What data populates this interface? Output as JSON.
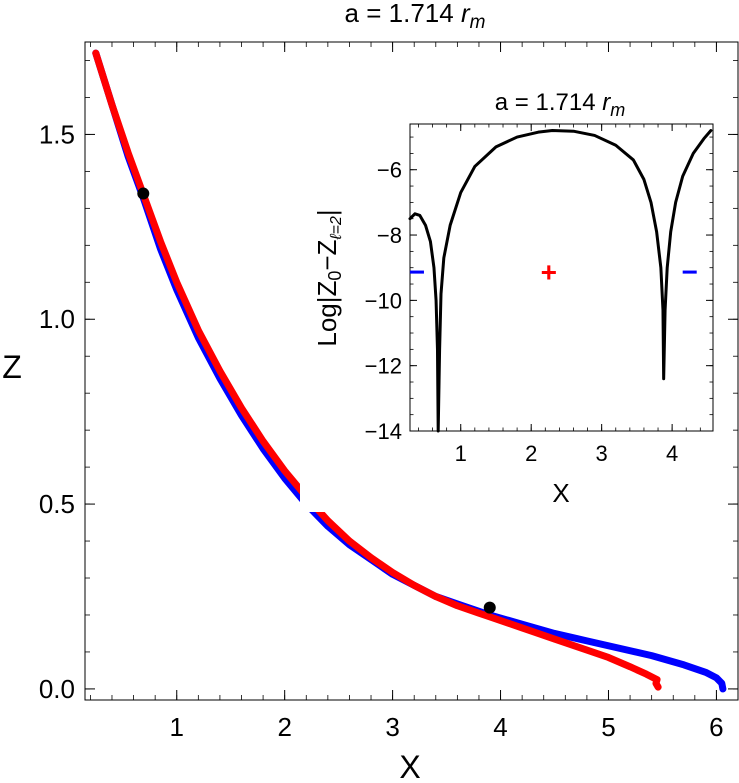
{
  "chart_data": [
    {
      "type": "line",
      "title": {
        "main": "a = 1.714 ",
        "italic": "r",
        "sub": "m"
      },
      "xlabel": "X",
      "ylabel": "Z",
      "xlim": [
        0.15,
        6.2
      ],
      "ylim": [
        -0.03,
        1.75
      ],
      "xticks": [
        1,
        2,
        3,
        4,
        5,
        6
      ],
      "yticks": [
        0.0,
        0.5,
        1.0,
        1.5
      ],
      "ytick_labels": [
        "0.0",
        "0.5",
        "1.0",
        "1.5"
      ],
      "grid": false,
      "series": [
        {
          "color": "#0000ff",
          "points": [
            [
              0.25,
              1.72
            ],
            [
              0.4,
              1.58
            ],
            [
              0.55,
              1.44
            ],
            [
              0.7,
              1.32
            ],
            [
              0.85,
              1.19
            ],
            [
              1.0,
              1.08
            ],
            [
              1.2,
              0.95
            ],
            [
              1.4,
              0.84
            ],
            [
              1.6,
              0.74
            ],
            [
              1.8,
              0.65
            ],
            [
              2.0,
              0.57
            ],
            [
              2.2,
              0.5
            ],
            [
              2.4,
              0.44
            ],
            [
              2.6,
              0.39
            ],
            [
              2.8,
              0.35
            ],
            [
              3.0,
              0.31
            ],
            [
              3.2,
              0.28
            ],
            [
              3.4,
              0.25
            ],
            [
              3.6,
              0.23
            ],
            [
              3.8,
              0.21
            ],
            [
              3.9,
              0.2
            ],
            [
              4.2,
              0.175
            ],
            [
              4.5,
              0.15
            ],
            [
              4.8,
              0.13
            ],
            [
              5.1,
              0.11
            ],
            [
              5.4,
              0.09
            ],
            [
              5.7,
              0.065
            ],
            [
              5.9,
              0.045
            ],
            [
              6.0,
              0.03
            ],
            [
              6.05,
              0.015
            ],
            [
              6.06,
              0.0
            ]
          ]
        },
        {
          "color": "#ff0000",
          "points": [
            [
              0.25,
              1.72
            ],
            [
              0.4,
              1.58
            ],
            [
              0.55,
              1.45
            ],
            [
              0.7,
              1.33
            ],
            [
              0.85,
              1.21
            ],
            [
              1.0,
              1.1
            ],
            [
              1.2,
              0.97
            ],
            [
              1.4,
              0.86
            ],
            [
              1.6,
              0.76
            ],
            [
              1.8,
              0.67
            ],
            [
              2.0,
              0.59
            ],
            [
              2.2,
              0.52
            ],
            [
              2.4,
              0.455
            ],
            [
              2.6,
              0.4
            ],
            [
              2.8,
              0.355
            ],
            [
              3.0,
              0.315
            ],
            [
              3.2,
              0.28
            ],
            [
              3.4,
              0.25
            ],
            [
              3.6,
              0.225
            ],
            [
              3.8,
              0.205
            ],
            [
              3.9,
              0.195
            ],
            [
              4.2,
              0.165
            ],
            [
              4.5,
              0.135
            ],
            [
              4.8,
              0.105
            ],
            [
              5.0,
              0.085
            ],
            [
              5.2,
              0.06
            ],
            [
              5.35,
              0.04
            ],
            [
              5.45,
              0.025
            ],
            [
              5.44,
              0.015
            ],
            [
              5.46,
              0.005
            ]
          ]
        }
      ],
      "markers": [
        {
          "x": 0.69,
          "y": 1.34,
          "color": "#000000"
        },
        {
          "x": 3.9,
          "y": 0.22,
          "color": "#000000"
        }
      ]
    },
    {
      "type": "line",
      "title": {
        "main": "a = 1.714 ",
        "italic": "r",
        "sub": "m"
      },
      "xlabel": "X",
      "ylabel": {
        "prefix": "Log|Z",
        "sub1": "0",
        "mid": "−Z",
        "sub2": "ℓ=2",
        "suffix": "|"
      },
      "xlim": [
        0.28,
        4.58
      ],
      "ylim": [
        -14,
        -4.6
      ],
      "xticks": [
        1,
        2,
        3,
        4
      ],
      "yticks": [
        -14,
        -12,
        -10,
        -8,
        -6
      ],
      "ytick_labels": [
        "−14",
        "−12",
        "−10",
        "−8",
        "−6"
      ],
      "grid": false,
      "series": [
        {
          "color": "#000000",
          "points": [
            [
              0.28,
              -7.5
            ],
            [
              0.35,
              -7.35
            ],
            [
              0.42,
              -7.4
            ],
            [
              0.5,
              -7.7
            ],
            [
              0.57,
              -8.2
            ],
            [
              0.62,
              -9.0
            ],
            [
              0.65,
              -10.0
            ],
            [
              0.67,
              -11.5
            ],
            [
              0.68,
              -14.0
            ],
            [
              0.7,
              -11.5
            ],
            [
              0.72,
              -9.8
            ],
            [
              0.76,
              -8.7
            ],
            [
              0.85,
              -7.7
            ],
            [
              1.0,
              -6.7
            ],
            [
              1.2,
              -5.9
            ],
            [
              1.5,
              -5.3
            ],
            [
              1.8,
              -5.0
            ],
            [
              2.1,
              -4.85
            ],
            [
              2.3,
              -4.8
            ],
            [
              2.6,
              -4.82
            ],
            [
              2.9,
              -4.95
            ],
            [
              3.2,
              -5.25
            ],
            [
              3.45,
              -5.7
            ],
            [
              3.6,
              -6.3
            ],
            [
              3.7,
              -7.0
            ],
            [
              3.78,
              -7.9
            ],
            [
              3.84,
              -9.0
            ],
            [
              3.87,
              -10.3
            ],
            [
              3.88,
              -12.4
            ],
            [
              3.9,
              -10.3
            ],
            [
              3.93,
              -9.0
            ],
            [
              3.98,
              -7.9
            ],
            [
              4.05,
              -7.0
            ],
            [
              4.15,
              -6.2
            ],
            [
              4.3,
              -5.5
            ],
            [
              4.45,
              -5.05
            ],
            [
              4.55,
              -4.8
            ]
          ]
        }
      ],
      "annotations": [
        {
          "text": "−",
          "x": 0.38,
          "y": -9.15,
          "color": "#0000ff"
        },
        {
          "text": "+",
          "x": 2.25,
          "y": -9.15,
          "color": "#ff0000"
        },
        {
          "text": "−",
          "x": 4.25,
          "y": -9.15,
          "color": "#0000ff"
        }
      ]
    }
  ]
}
